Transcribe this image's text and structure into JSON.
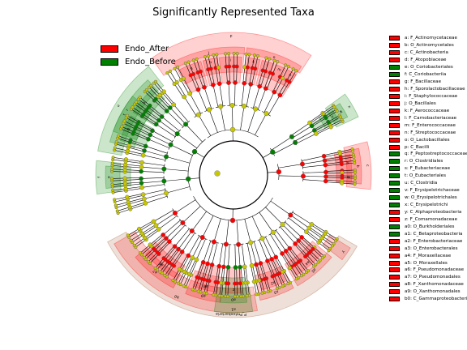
{
  "chart_data": {
    "type": "cladogram",
    "title": "Significantly Represented Taxa",
    "groups": [
      {
        "name": "Endo_After",
        "color": "#ff0000"
      },
      {
        "name": "Endo_Before",
        "color": "#008000"
      }
    ],
    "taxa_legend": [
      {
        "label": "a: F_Actinomycetaceae",
        "group": "Endo_After"
      },
      {
        "label": "b: O_Actinomycetales",
        "group": "Endo_After"
      },
      {
        "label": "c: C_Actinobacteria",
        "group": "Endo_After"
      },
      {
        "label": "d: F_Atopobiaceae",
        "group": "Endo_After"
      },
      {
        "label": "e: O_Coriobacteriales",
        "group": "Endo_Before"
      },
      {
        "label": "f: C_Coriobacteriia",
        "group": "Endo_Before"
      },
      {
        "label": "g: F_Bacillaceae",
        "group": "Endo_After"
      },
      {
        "label": "h: F_Sporolactobacillaceae",
        "group": "Endo_After"
      },
      {
        "label": "i: F_Staphylococcaceae",
        "group": "Endo_After"
      },
      {
        "label": "j: O_Bacillales",
        "group": "Endo_After"
      },
      {
        "label": "k: F_Aerococcaceae",
        "group": "Endo_After"
      },
      {
        "label": "l: F_Carnobacteriaceae",
        "group": "Endo_After"
      },
      {
        "label": "m: F_Enterococcaceae",
        "group": "Endo_After"
      },
      {
        "label": "n: F_Streptococcaceae",
        "group": "Endo_After"
      },
      {
        "label": "o: O_Lactobacillales",
        "group": "Endo_After"
      },
      {
        "label": "p: C_Bacilli",
        "group": "Endo_After"
      },
      {
        "label": "q: F_Peptostreptococcaceae",
        "group": "Endo_Before"
      },
      {
        "label": "r: O_Clostridiales",
        "group": "Endo_Before"
      },
      {
        "label": "s: F_Eubacteriaceae",
        "group": "Endo_Before"
      },
      {
        "label": "t: O_Eubacteriales",
        "group": "Endo_Before"
      },
      {
        "label": "u: C_Clostridia",
        "group": "Endo_Before"
      },
      {
        "label": "v: F_Erysipelotrichaceae",
        "group": "Endo_Before"
      },
      {
        "label": "w: O_Erysipelotrichales",
        "group": "Endo_Before"
      },
      {
        "label": "x: C_Erysipelotrichi",
        "group": "Endo_Before"
      },
      {
        "label": "y: C_Alphaproteobacteria",
        "group": "Endo_After"
      },
      {
        "label": "z: F_Comamonadaceae",
        "group": "Endo_After"
      },
      {
        "label": "a0: O_Burkholderiales",
        "group": "Endo_Before"
      },
      {
        "label": "a1: C_Betaproteobacteria",
        "group": "Endo_Before"
      },
      {
        "label": "a2: F_Enterobacteriaceae",
        "group": "Endo_After"
      },
      {
        "label": "a3: O_Enterobacterales",
        "group": "Endo_After"
      },
      {
        "label": "a4: F_Moraxellaceae",
        "group": "Endo_After"
      },
      {
        "label": "a5: O_Moraxellales",
        "group": "Endo_After"
      },
      {
        "label": "a6: F_Pseudomonadaceae",
        "group": "Endo_After"
      },
      {
        "label": "a7: O_Pseudomonadales",
        "group": "Endo_After"
      },
      {
        "label": "a8: F_Xanthomonadaceae",
        "group": "Endo_After"
      },
      {
        "label": "a9: O_Xanthomonadales",
        "group": "Endo_After"
      },
      {
        "label": "b0: C_Gammaproteobacteria",
        "group": "Endo_After"
      }
    ],
    "highlighted_clades": [
      {
        "label": "p",
        "group": "Endo_After"
      },
      {
        "label": "j",
        "group": "Endo_After"
      },
      {
        "label": "o",
        "group": "Endo_After"
      },
      {
        "label": "g",
        "group": "Endo_After"
      },
      {
        "label": "h",
        "group": "Endo_After"
      },
      {
        "label": "i",
        "group": "Endo_After"
      },
      {
        "label": "k",
        "group": "Endo_After"
      },
      {
        "label": "l",
        "group": "Endo_After"
      },
      {
        "label": "m",
        "group": "Endo_After"
      },
      {
        "label": "n",
        "group": "Endo_After"
      },
      {
        "label": "u",
        "group": "Endo_Before"
      },
      {
        "label": "r",
        "group": "Endo_Before"
      },
      {
        "label": "t",
        "group": "Endo_Before"
      },
      {
        "label": "q",
        "group": "Endo_Before"
      },
      {
        "label": "s",
        "group": "Endo_Before"
      },
      {
        "label": "x",
        "group": "Endo_Before"
      },
      {
        "label": "w",
        "group": "Endo_Before"
      },
      {
        "label": "v",
        "group": "Endo_Before"
      },
      {
        "label": "f",
        "group": "Endo_Before"
      },
      {
        "label": "e",
        "group": "Endo_Before"
      },
      {
        "label": "c",
        "group": "Endo_After"
      },
      {
        "label": "b",
        "group": "Endo_After"
      },
      {
        "label": "a",
        "group": "Endo_After"
      },
      {
        "label": "d",
        "group": "Endo_After"
      },
      {
        "label": "P_Proteobacteria",
        "group": null
      },
      {
        "label": "b0",
        "group": "Endo_After"
      },
      {
        "label": "a9",
        "group": "Endo_After"
      },
      {
        "label": "a8",
        "group": "Endo_After"
      },
      {
        "label": "a7",
        "group": "Endo_After"
      },
      {
        "label": "a6",
        "group": "Endo_After"
      },
      {
        "label": "a5",
        "group": "Endo_After"
      },
      {
        "label": "a4",
        "group": "Endo_After"
      },
      {
        "label": "a3",
        "group": "Endo_After"
      },
      {
        "label": "a2",
        "group": "Endo_After"
      },
      {
        "label": "y",
        "group": "Endo_After"
      },
      {
        "label": "a1",
        "group": "Endo_Before"
      },
      {
        "label": "a0",
        "group": "Endo_Before"
      },
      {
        "label": "z",
        "group": "Endo_After"
      }
    ],
    "colors": {
      "endo_after": "#ff0000",
      "endo_before": "#008000",
      "non_significant_node": "#c8c800",
      "phylum_sector": "#a0522d"
    }
  }
}
